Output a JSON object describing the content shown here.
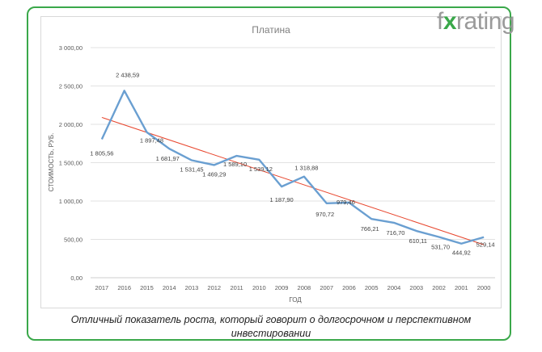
{
  "brand": {
    "prefix": "f",
    "x": "x",
    "suffix": "rating"
  },
  "caption": "Отличный показатель роста, который говорит о долгосрочном и перспективном инвестировании",
  "colors": {
    "frame": "#3aa84a",
    "series": "#6a9fd1",
    "trend": "#e8452c",
    "grid": "#d9d9d9"
  },
  "chart_data": {
    "type": "line",
    "title": "Платина",
    "xlabel": "ГОД",
    "ylabel": "СТОИМОСТЬ, РУБ.",
    "ylim": [
      0,
      3000
    ],
    "yticks": [
      0,
      500,
      1000,
      1500,
      2000,
      2500,
      3000
    ],
    "ytick_labels": [
      "0,00",
      "500,00",
      "1 000,00",
      "1 500,00",
      "2 000,00",
      "2 500,00",
      "3 000,00"
    ],
    "categories": [
      "2017",
      "2016",
      "2015",
      "2014",
      "2013",
      "2012",
      "2011",
      "2010",
      "2009",
      "2008",
      "2007",
      "2006",
      "2005",
      "2004",
      "2003",
      "2002",
      "2001",
      "2000"
    ],
    "series": [
      {
        "name": "Платина",
        "values": [
          1805.56,
          2438.59,
          1897.48,
          1681.97,
          1531.45,
          1469.29,
          1589.1,
          1539.12,
          1187.9,
          1318.88,
          970.72,
          979.46,
          766.21,
          716.7,
          610.11,
          531.7,
          444.92,
          529.14
        ],
        "labels": [
          "1 805,56",
          "2 438,59",
          "1 897,48",
          "1 681,97",
          "1 531,45",
          "1 469,29",
          "1 589,10",
          "1 539,12",
          "1 187,90",
          "1 318,88",
          "970,72",
          "979,46",
          "766,21",
          "716,70",
          "610,11",
          "531,70",
          "444,92",
          "529,14"
        ]
      }
    ],
    "trendline": {
      "type": "linear",
      "start": 2090,
      "end": 430
    },
    "grid": true,
    "legend": "none"
  }
}
